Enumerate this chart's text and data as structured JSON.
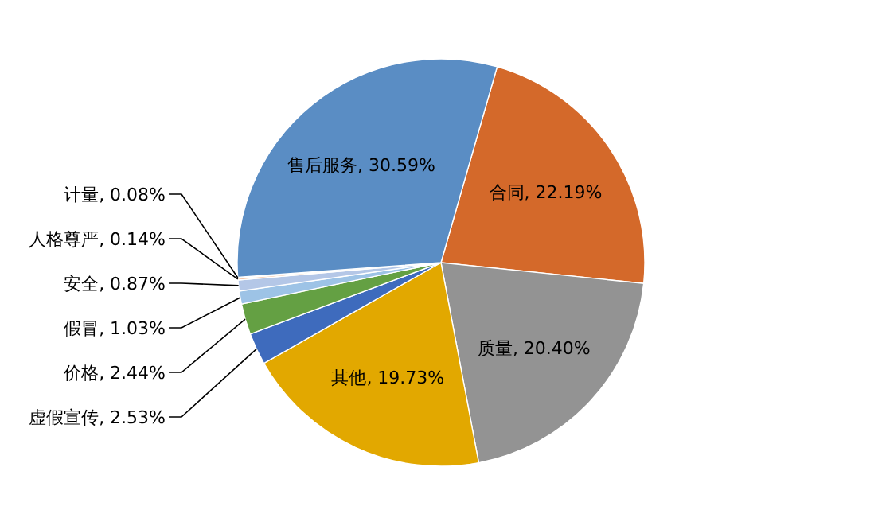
{
  "chart_data": {
    "type": "pie",
    "categories": [
      "合同",
      "质量",
      "其他",
      "虚假宣传",
      "价格",
      "假冒",
      "安全",
      "人格尊严",
      "计量",
      "售后服务"
    ],
    "values": [
      22.19,
      20.4,
      19.73,
      2.53,
      2.44,
      1.03,
      0.87,
      0.14,
      0.08,
      30.59
    ],
    "value_labels": [
      ", 22.19%",
      ", 20.40%",
      ", 19.73%",
      ", 2.53%",
      ", 2.44%",
      ", 1.03%",
      ", 0.87%",
      ", 0.14%",
      ", 0.08%",
      ", 30.59%"
    ],
    "colors": [
      "#d4692a",
      "#939393",
      "#e2a800",
      "#3e6bbd",
      "#64a043",
      "#9dc3e6",
      "#b4c7e7",
      "#f4b183",
      "#ffc000",
      "#5a8dc4"
    ]
  }
}
